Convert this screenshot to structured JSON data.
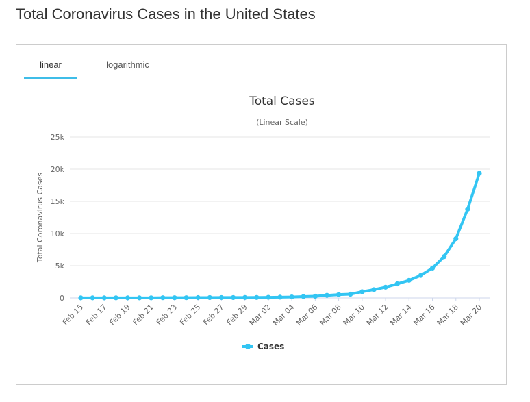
{
  "page": {
    "title": "Total Coronavirus Cases in the United States"
  },
  "tabs": [
    {
      "label": "linear"
    },
    {
      "label": "logarithmic"
    }
  ],
  "colors": {
    "series": "#33c5f3",
    "tab_underline": "#3fbde8",
    "grid": "#e6e6e6",
    "text": "#333333"
  },
  "chart_data": {
    "type": "line",
    "title": "Total Cases",
    "subtitle": "(Linear Scale)",
    "ylabel": "Total Coronavirus Cases",
    "xlabel": "",
    "ylim": [
      0,
      25000
    ],
    "y_ticks": [
      {
        "value": 0,
        "label": "0"
      },
      {
        "value": 5000,
        "label": "5k"
      },
      {
        "value": 10000,
        "label": "10k"
      },
      {
        "value": 15000,
        "label": "15k"
      },
      {
        "value": 20000,
        "label": "20k"
      },
      {
        "value": 25000,
        "label": "25k"
      }
    ],
    "x": [
      "Feb 15",
      "Feb 16",
      "Feb 17",
      "Feb 18",
      "Feb 19",
      "Feb 20",
      "Feb 21",
      "Feb 22",
      "Feb 23",
      "Feb 24",
      "Feb 25",
      "Feb 26",
      "Feb 27",
      "Feb 28",
      "Feb 29",
      "Mar 01",
      "Mar 02",
      "Mar 03",
      "Mar 04",
      "Mar 05",
      "Mar 06",
      "Mar 07",
      "Mar 08",
      "Mar 09",
      "Mar 10",
      "Mar 11",
      "Mar 12",
      "Mar 13",
      "Mar 14",
      "Mar 15",
      "Mar 16",
      "Mar 17",
      "Mar 18",
      "Mar 19",
      "Mar 20"
    ],
    "x_tick_labels": [
      "Feb 15",
      "Feb 17",
      "Feb 19",
      "Feb 21",
      "Feb 23",
      "Feb 25",
      "Feb 27",
      "Feb 29",
      "Mar 02",
      "Mar 04",
      "Mar 06",
      "Mar 08",
      "Mar 10",
      "Mar 12",
      "Mar 14",
      "Mar 16",
      "Mar 18",
      "Mar 20"
    ],
    "series": [
      {
        "name": "Cases",
        "values": [
          15,
          15,
          15,
          15,
          15,
          15,
          15,
          35,
          35,
          35,
          53,
          57,
          60,
          60,
          68,
          74,
          98,
          118,
          149,
          217,
          262,
          402,
          518,
          583,
          959,
          1281,
          1663,
          2179,
          2726,
          3499,
          4632,
          6421,
          9197,
          13779,
          19367
        ]
      }
    ],
    "legend": "bottom-center",
    "grid": true
  }
}
